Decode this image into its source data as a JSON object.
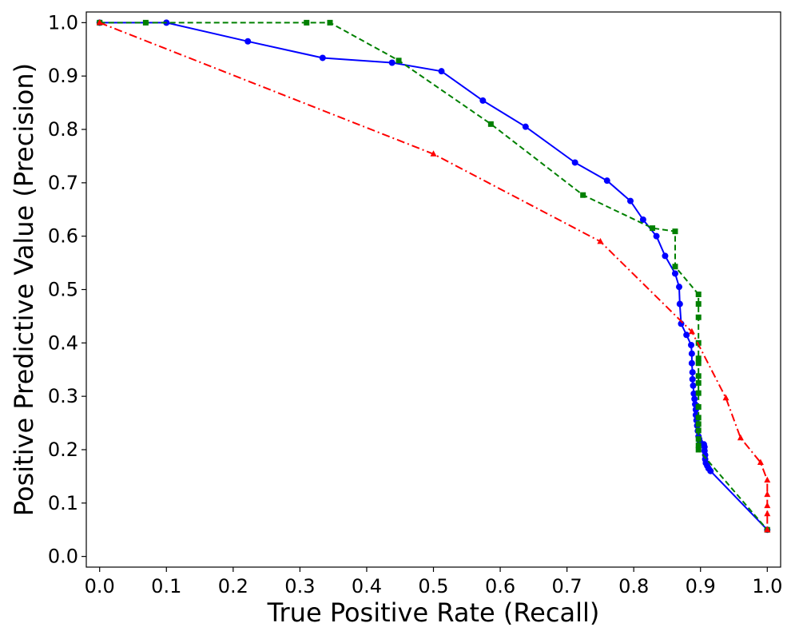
{
  "chart_data": {
    "type": "line",
    "title": "",
    "xlabel": "True Positive Rate (Recall)",
    "ylabel": "Positive Predictive Value (Precision)",
    "xlim": [
      -0.02,
      1.02
    ],
    "ylim": [
      -0.02,
      1.02
    ],
    "grid": false,
    "legend": "none",
    "xticks": [
      0.0,
      0.1,
      0.2,
      0.3,
      0.4,
      0.5,
      0.6,
      0.7,
      0.8,
      0.9,
      1.0
    ],
    "xtick_labels": [
      "0.0",
      "0.1",
      "0.2",
      "0.3",
      "0.4",
      "0.5",
      "0.6",
      "0.7",
      "0.8",
      "0.9",
      "1.0"
    ],
    "yticks": [
      0.0,
      0.1,
      0.2,
      0.3,
      0.4,
      0.5,
      0.6,
      0.7,
      0.8,
      0.9,
      1.0
    ],
    "ytick_labels": [
      "0.0",
      "0.1",
      "0.2",
      "0.3",
      "0.4",
      "0.5",
      "0.6",
      "0.7",
      "0.8",
      "0.9",
      "1.0"
    ],
    "series": [
      {
        "color": "#0000ff",
        "line_style": "solid",
        "marker": "circle",
        "x": [
          0.0,
          0.1,
          0.222,
          0.334,
          0.438,
          0.512,
          0.574,
          0.638,
          0.712,
          0.76,
          0.795,
          0.814,
          0.834,
          0.847,
          0.862,
          0.868,
          0.869,
          0.871,
          0.879,
          0.886,
          0.887,
          0.887,
          0.888,
          0.888,
          0.889,
          0.89,
          0.891,
          0.892,
          0.893,
          0.893,
          0.894,
          0.895,
          0.896,
          0.897,
          0.898,
          0.899,
          0.905,
          0.906,
          0.906,
          0.907,
          0.907,
          0.908,
          0.91,
          0.912,
          0.915,
          1.0
        ],
        "y": [
          1.0,
          1.0,
          0.965,
          0.934,
          0.925,
          0.909,
          0.854,
          0.805,
          0.738,
          0.704,
          0.666,
          0.631,
          0.6,
          0.563,
          0.53,
          0.505,
          0.473,
          0.436,
          0.415,
          0.396,
          0.38,
          0.362,
          0.345,
          0.332,
          0.32,
          0.305,
          0.295,
          0.285,
          0.275,
          0.265,
          0.255,
          0.245,
          0.235,
          0.225,
          0.22,
          0.215,
          0.21,
          0.205,
          0.198,
          0.19,
          0.182,
          0.175,
          0.17,
          0.165,
          0.16,
          0.05
        ]
      },
      {
        "color": "#008000",
        "line_style": "dashed",
        "marker": "square",
        "x": [
          0.0,
          0.069,
          0.31,
          0.345,
          0.448,
          0.586,
          0.724,
          0.828,
          0.862,
          0.862,
          0.897,
          0.897,
          0.897,
          0.897,
          0.897,
          0.897,
          0.897,
          0.897,
          0.897,
          0.897,
          0.897,
          0.897,
          0.897,
          0.897,
          0.897,
          0.897,
          1.0
        ],
        "y": [
          1.0,
          1.0,
          1.0,
          1.0,
          0.929,
          0.81,
          0.677,
          0.615,
          0.609,
          0.543,
          0.491,
          0.473,
          0.448,
          0.4,
          0.371,
          0.362,
          0.338,
          0.325,
          0.306,
          0.28,
          0.26,
          0.248,
          0.236,
          0.22,
          0.208,
          0.2,
          0.05
        ]
      },
      {
        "color": "#ff0000",
        "line_style": "dashdot",
        "marker": "triangle",
        "x": [
          0.0,
          0.5,
          0.75,
          0.887,
          0.938,
          0.96,
          0.99,
          1.0,
          1.0,
          1.0,
          1.0,
          1.0,
          1.0
        ],
        "y": [
          1.0,
          0.754,
          0.59,
          0.421,
          0.297,
          0.222,
          0.176,
          0.143,
          0.116,
          0.095,
          0.08,
          0.05,
          0.05
        ]
      }
    ]
  }
}
